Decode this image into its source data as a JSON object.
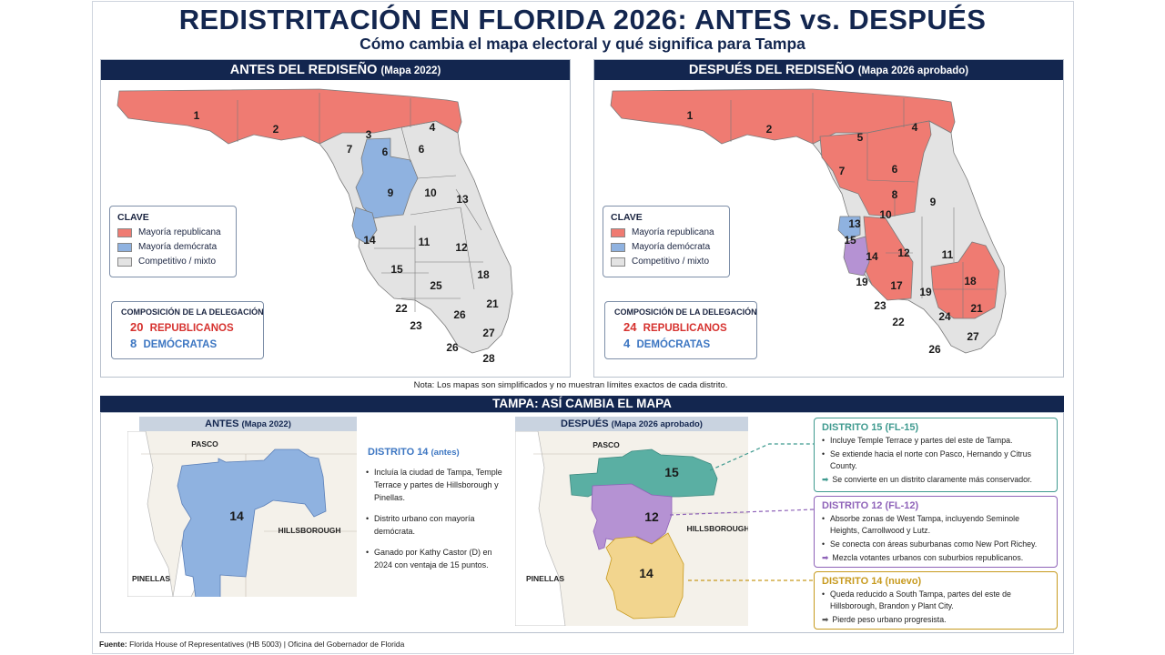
{
  "title": "REDISTRITACIÓN EN FLORIDA 2026: ANTES vs. DESPUÉS",
  "subtitle": "Cómo cambia el mapa electoral y qué significa para Tampa",
  "colors": {
    "republican": "#ef7b72",
    "democrat": "#8fb2e0",
    "competitive": "#e3e3e3",
    "navy": "#13264f",
    "d15": "#5aafa3",
    "d12": "#b592d3",
    "d14_new": "#f2d58e"
  },
  "before_panel": {
    "title": "ANTES DEL REDISEÑO",
    "subtitle": "(Mapa 2022)",
    "legend": {
      "title": "CLAVE",
      "items": [
        {
          "label": "Mayoría republicana",
          "color": "#ef7b72"
        },
        {
          "label": "Mayoría demócrata",
          "color": "#8fb2e0"
        },
        {
          "label": "Competitivo / mixto",
          "color": "#e3e3e3"
        }
      ]
    },
    "composition": {
      "title": "COMPOSICIÓN DE LA DELEGACIÓN",
      "republicans": "20",
      "republicans_label": "REPUBLICANOS",
      "democrats": "8",
      "democrats_label": "DEMÓCRATAS"
    },
    "district_labels": [
      "1",
      "2",
      "3",
      "4",
      "6",
      "6",
      "7",
      "9",
      "10",
      "11",
      "12",
      "13",
      "14",
      "15",
      "18",
      "21",
      "22",
      "23",
      "25",
      "26",
      "26",
      "27",
      "28"
    ]
  },
  "after_panel": {
    "title": "DESPUÉS DEL REDISEÑO",
    "subtitle": "(Mapa 2026 aprobado)",
    "legend": {
      "title": "CLAVE",
      "items": [
        {
          "label": "Mayoría republicana",
          "color": "#ef7b72"
        },
        {
          "label": "Mayoría demócrata",
          "color": "#8fb2e0"
        },
        {
          "label": "Competitivo / mixto",
          "color": "#e3e3e3"
        }
      ]
    },
    "composition": {
      "title": "COMPOSICIÓN DE LA DELEGACIÓN",
      "republicans": "24",
      "republicans_label": "REPUBLICANOS",
      "democrats": "4",
      "democrats_label": "DEMÓCRATAS"
    },
    "district_labels": [
      "1",
      "2",
      "4",
      "5",
      "6",
      "7",
      "8",
      "9",
      "10",
      "11",
      "12",
      "13",
      "14",
      "15",
      "17",
      "18",
      "19",
      "19",
      "21",
      "22",
      "23",
      "24",
      "26",
      "27"
    ]
  },
  "note": "Nota: Los mapas son simplificados y no muestran límites exactos de cada distrito.",
  "tampa_section": {
    "title": "TAMPA: ASÍ CAMBIA EL MAPA",
    "before_map": {
      "title": "ANTES",
      "subtitle": "(Mapa 2022)",
      "labels": {
        "pasco": "PASCO",
        "hillsborough": "HILLSBOROUGH",
        "pinellas": "PINELLAS",
        "district": "14"
      }
    },
    "district14_before": {
      "title": "DISTRITO 14",
      "subtitle": "(antes)",
      "bullets": [
        "Incluía la ciudad de Tampa, Temple Terrace y partes de Hillsborough y Pinellas.",
        "Distrito urbano con mayoría demócrata.",
        "Ganado por Kathy Castor (D) en 2024 con ventaja de 15 puntos."
      ]
    },
    "after_map": {
      "title": "DESPUÉS",
      "subtitle": "(Mapa 2026 aprobado)",
      "labels": {
        "pasco": "PASCO",
        "hillsborough": "HILLSBOROUGH",
        "pinellas": "PINELLAS",
        "d15": "15",
        "d12": "12",
        "d14": "14"
      }
    },
    "boxes": [
      {
        "title": "DISTRITO 15 (FL-15)",
        "color": "#3f9a8f",
        "bullets": [
          "Incluye Temple Terrace y partes del este de Tampa.",
          "Se extiende hacia el norte con Pasco, Hernando y Citrus County."
        ],
        "arrow_text": "Se convierte en un distrito claramente más conservador."
      },
      {
        "title": "DISTRITO 12 (FL-12)",
        "color": "#8e62b8",
        "bullets": [
          "Absorbe zonas de West Tampa, incluyendo Seminole Heights, Carrollwood y Lutz.",
          "Se conecta con áreas suburbanas como New Port Richey."
        ],
        "arrow_text": "Mezcla votantes urbanos con suburbios republicanos."
      },
      {
        "title": "DISTRITO 14 (nuevo)",
        "color": "#c79a1e",
        "bullets": [
          "Queda reducido a South Tampa, partes del este de Hillsborough, Brandon y Plant City."
        ],
        "arrow_text": "Pierde peso urbano progresista."
      }
    ]
  },
  "source": {
    "label": "Fuente:",
    "text": "Florida House of Representatives (HB 5003)  |  Oficina del Gobernador de Florida"
  }
}
